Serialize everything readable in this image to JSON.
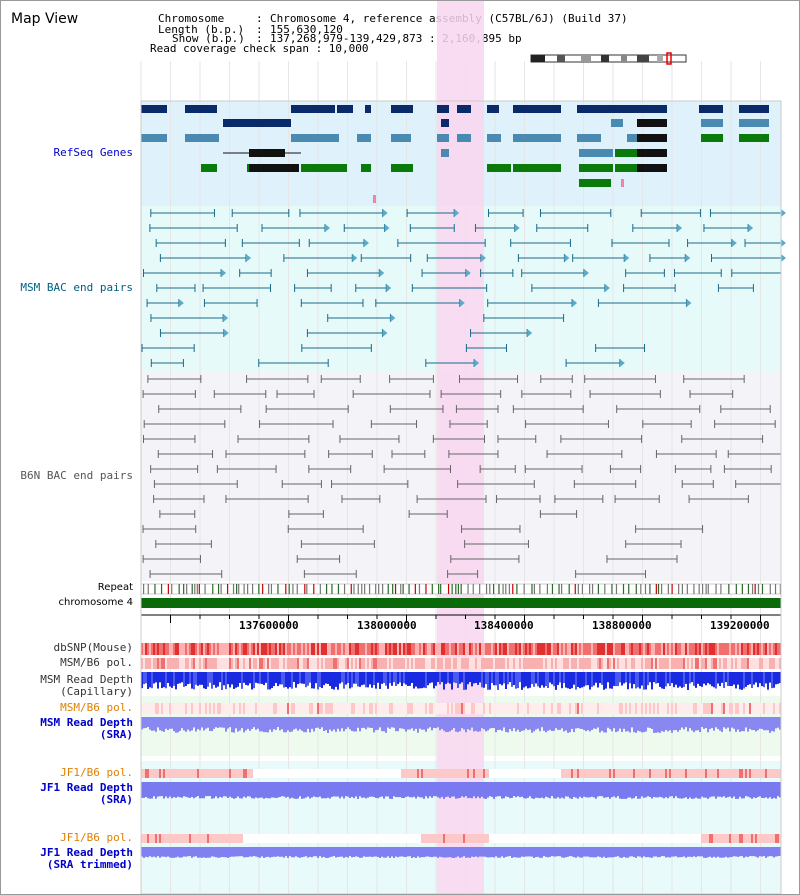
{
  "title": "Map View",
  "header": {
    "chromosome_key": "Chromosome",
    "chromosome_val": "Chromosome 4, reference assembly (C57BL/6J) (Build 37)",
    "length_key": "Length (b.p.)",
    "length_val": "155,630,120",
    "show_key": "Show (b.p.)",
    "show_val": "137,268,979-139,429,873 : 2,160,895 bp",
    "coverage": "Read coverage check span : 10,000"
  },
  "tracks": {
    "refseq": "RefSeq Genes",
    "msm_bac": "MSM BAC end pairs",
    "b6n_bac": "B6N BAC end pairs",
    "repeat": "Repeat",
    "chromosome": "chromosome 4",
    "dbsnp": "dbSNP(Mouse)",
    "msm_b6_pol_1": "MSM/B6 pol.",
    "msm_read_depth_cap": "MSM Read Depth\n(Capillary)",
    "msm_b6_pol_2": "MSM/B6 pol.",
    "msm_read_depth_sra": "MSM Read Depth\n(SRA)",
    "jf1_b6_pol_1": "JF1/B6 pol.",
    "jf1_read_depth_sra": "JF1 Read Depth\n(SRA)",
    "jf1_b6_pol_2": "JF1/B6 pol.",
    "jf1_read_depth_trim": "JF1 Read Depth\n(SRA trimmed)"
  },
  "axis_ticks": [
    "137600000",
    "138000000",
    "138400000",
    "138800000",
    "139200000"
  ],
  "colors": {
    "refseq_bg": "#dff1fa",
    "msm_bg": "#e6fafa",
    "b6n_bg": "#f4f4f8",
    "highlight": "#f9d6f0",
    "chrom_bar": "#0a6a0a",
    "dbsnp": "#f06060",
    "read_depth_dark": "#2030e0",
    "read_depth_light": "#8080f0",
    "label_blue": "#0000cc",
    "label_teal": "#006080",
    "label_orange": "#e08000"
  }
}
